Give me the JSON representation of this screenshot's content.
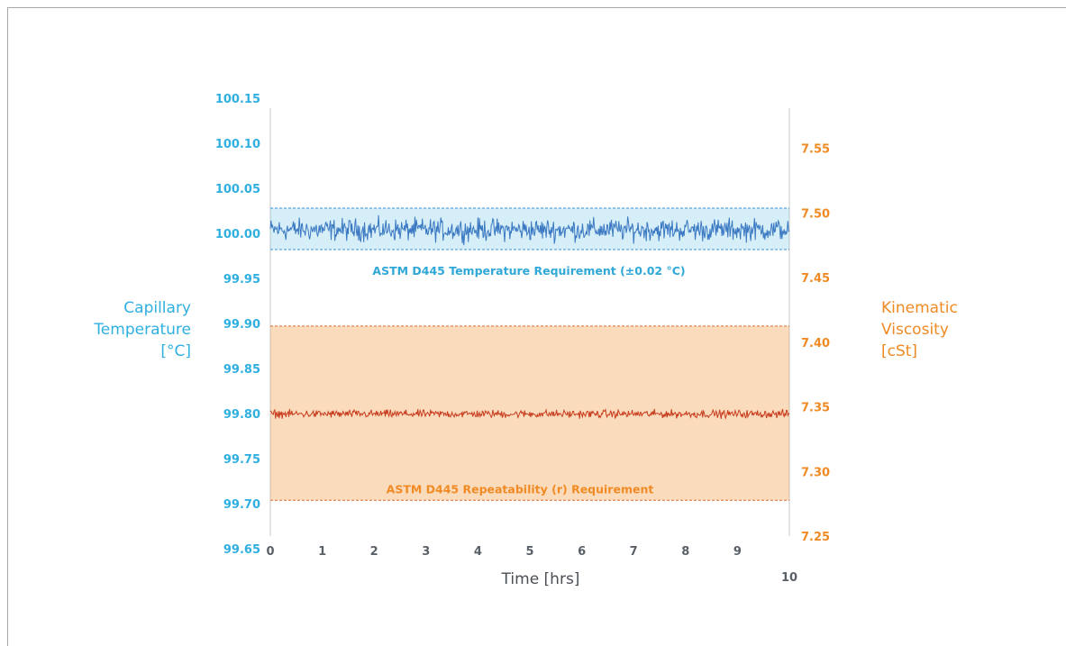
{
  "chart_data": {
    "type": "line",
    "x": {
      "label": "Time [hrs]",
      "ticks": [
        0,
        1,
        2,
        3,
        4,
        5,
        6,
        7,
        8,
        9,
        10
      ],
      "lim": [
        0,
        10
      ]
    },
    "y_left": {
      "label_lines": [
        "Capillary",
        "Temperature",
        "[°C]"
      ],
      "ticks": [
        "100.15",
        "100.10",
        "100.05",
        "100.00",
        "99.95",
        "99.90",
        "99.85",
        "99.80",
        "99.75",
        "99.70",
        "99.65"
      ],
      "tick_values": [
        100.15,
        100.1,
        100.05,
        100.0,
        99.95,
        99.9,
        99.85,
        99.8,
        99.75,
        99.7,
        99.65
      ]
    },
    "y_right": {
      "label_lines": [
        "Kinematic",
        "Viscosity",
        "[cSt]"
      ],
      "ticks": [
        "7.55",
        "7.50",
        "7.45",
        "7.40",
        "7.35",
        "7.30",
        "7.25"
      ],
      "tick_values": [
        7.55,
        7.5,
        7.45,
        7.4,
        7.35,
        7.3,
        7.25
      ],
      "lim": [
        7.25,
        7.57
      ]
    },
    "bands": [
      {
        "label": "ASTM D445 Temperature Requirement (±0.02  °C)",
        "axis": "left",
        "low": 99.982,
        "high": 100.028,
        "color": "#2fa8d8"
      },
      {
        "label": "ASTM D445 Repeatability (r) Requirement",
        "axis": "right",
        "low": 7.2777,
        "high": 7.4125,
        "color": "#f08a24"
      }
    ],
    "series": [
      {
        "axis": "left",
        "mean": 100.004,
        "noise": 0.006,
        "color": "#3a78c2"
      },
      {
        "axis": "right",
        "mean": 7.3445,
        "noise": 0.0015,
        "color": "#c83c1e"
      }
    ],
    "colors": {
      "left_axis": "#2fb0e0",
      "right_axis": "#f08a24",
      "x_axis": "#5a6068"
    }
  }
}
